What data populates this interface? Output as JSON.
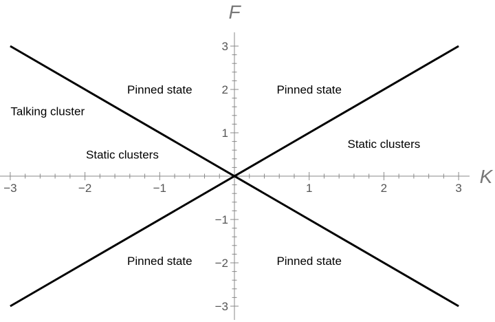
{
  "chart_data": {
    "type": "line",
    "title": "",
    "xlabel": "K",
    "ylabel": "F",
    "xlim": [
      -3.05,
      3.05
    ],
    "ylim": [
      -3.15,
      3.15
    ],
    "x_ticks": [
      -3,
      -2,
      -1,
      1,
      2,
      3
    ],
    "y_ticks": [
      -3,
      -2,
      -1,
      1,
      2,
      3
    ],
    "x_tick_labels": [
      "−3",
      "−2",
      "−1",
      "1",
      "2",
      "3"
    ],
    "y_tick_labels": [
      "−3",
      "−2",
      "−1",
      "1",
      "2",
      "3"
    ],
    "series": [
      {
        "points": [
          [
            -3,
            3
          ],
          [
            3,
            -3
          ]
        ],
        "color": "#000000"
      },
      {
        "points": [
          [
            -3,
            -3
          ],
          [
            3,
            3
          ]
        ],
        "color": "#000000"
      }
    ],
    "annotations": [
      {
        "text": "Pinned state",
        "x": -1,
        "y": 2
      },
      {
        "text": "Pinned state",
        "x": 1,
        "y": 2
      },
      {
        "text": "Talking cluster",
        "x": -2.5,
        "y": 1.5
      },
      {
        "text": "Static clusters",
        "x": -1.5,
        "y": 0.5
      },
      {
        "text": "Static clusters",
        "x": 2,
        "y": 0.75
      },
      {
        "text": "Pinned state",
        "x": -1,
        "y": -1.95
      },
      {
        "text": "Pinned state",
        "x": 1,
        "y": -1.95
      }
    ],
    "grid": false,
    "legend": "none"
  }
}
